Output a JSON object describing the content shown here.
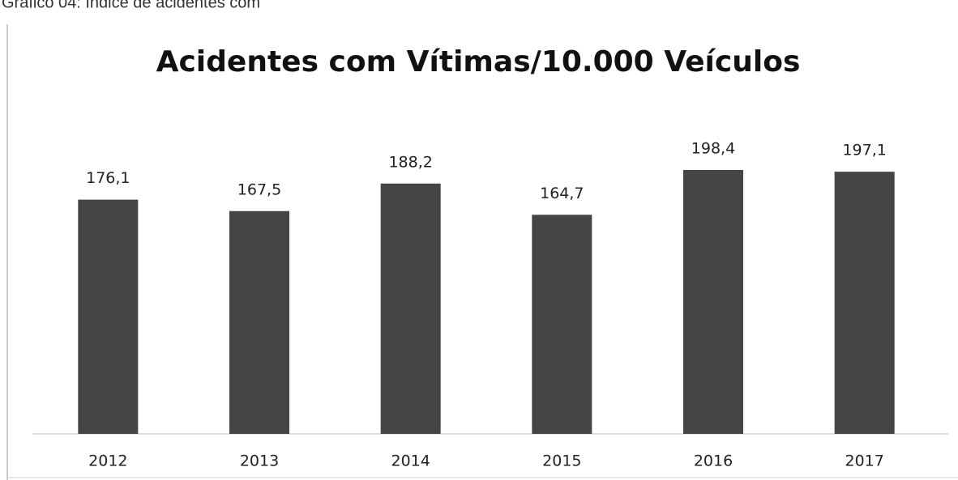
{
  "caption": "Gráfico 04: Índice de acidentes com",
  "chart_data": {
    "type": "bar",
    "title": "Acidentes com Vítimas/10.000 Veículos",
    "categories": [
      "2012",
      "2013",
      "2014",
      "2015",
      "2016",
      "2017"
    ],
    "values": [
      176.1,
      167.5,
      188.2,
      164.7,
      198.4,
      197.1
    ],
    "value_labels": [
      "176,1",
      "167,5",
      "188,2",
      "164,7",
      "198,4",
      "197,1"
    ],
    "color": "#454545"
  }
}
